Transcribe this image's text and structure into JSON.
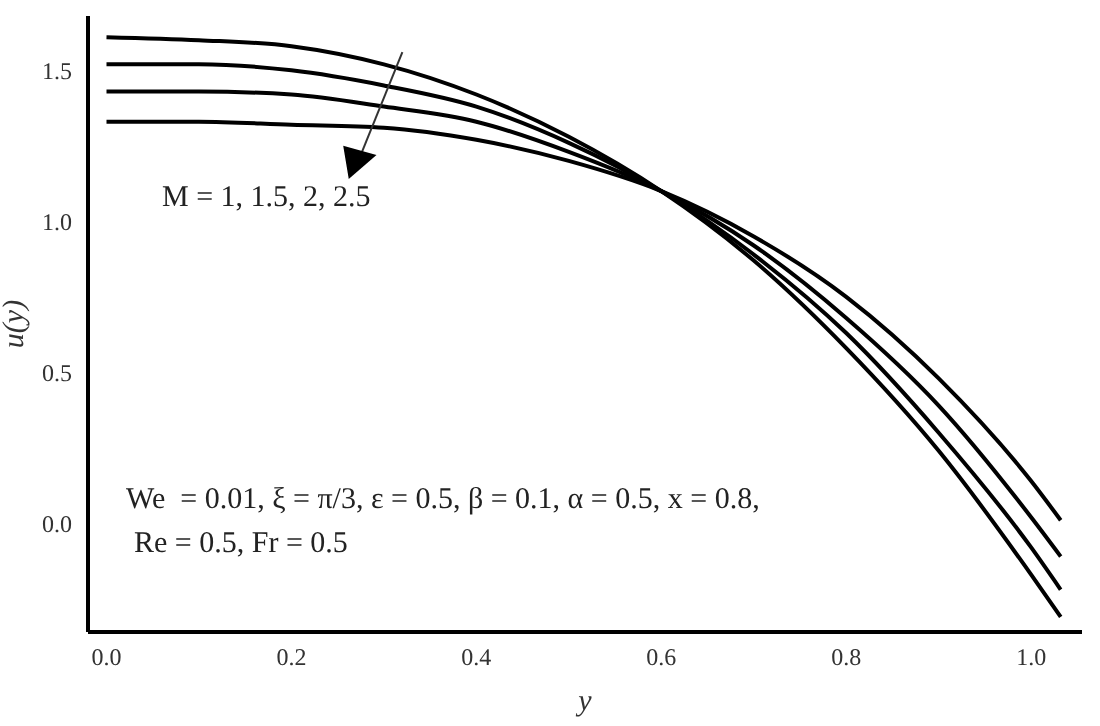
{
  "chart_data": {
    "type": "line",
    "xlabel": "y",
    "ylabel": "u(y)",
    "x": [
      0,
      0.1,
      0.2,
      0.3,
      0.4,
      0.5,
      0.6,
      0.7,
      0.8,
      0.9,
      1.0,
      1.032
    ],
    "series": [
      {
        "color": "#000000",
        "values": [
          1.61,
          1.6,
          1.58,
          1.52,
          1.42,
          1.28,
          1.1,
          0.87,
          0.58,
          0.24,
          -0.17,
          -0.31
        ]
      },
      {
        "color": "#000000",
        "values": [
          1.52,
          1.52,
          1.5,
          1.45,
          1.38,
          1.26,
          1.1,
          0.89,
          0.63,
          0.3,
          -0.08,
          -0.22
        ]
      },
      {
        "color": "#000000",
        "values": [
          1.43,
          1.43,
          1.42,
          1.38,
          1.33,
          1.23,
          1.1,
          0.92,
          0.68,
          0.39,
          0.02,
          -0.11
        ]
      },
      {
        "color": "#000000",
        "values": [
          1.33,
          1.33,
          1.32,
          1.31,
          1.27,
          1.2,
          1.1,
          0.95,
          0.75,
          0.48,
          0.14,
          0.01
        ]
      }
    ],
    "xlim": [
      -0.02,
      1.055
    ],
    "ylim": [
      -0.36,
      1.68
    ],
    "xticks": [
      {
        "value": 0,
        "label": "0.0"
      },
      {
        "value": 0.2,
        "label": "0.2"
      },
      {
        "value": 0.4,
        "label": "0.4"
      },
      {
        "value": 0.6,
        "label": "0.6"
      },
      {
        "value": 0.8,
        "label": "0.8"
      },
      {
        "value": 1.0,
        "label": "1.0"
      }
    ],
    "yticks": [
      {
        "value": 0,
        "label": "0.0"
      },
      {
        "value": 0.5,
        "label": "0.5"
      },
      {
        "value": 1.0,
        "label": "1.0"
      },
      {
        "value": 1.5,
        "label": "1.5"
      }
    ],
    "annotations": [
      "M = 1, 1.5, 2, 2.5",
      "We  = 0.01, ξ = π/3, ε = 0.5, β = 0.1, α = 0.5, x = 0.8,",
      "Re = 0.5, Fr = 0.5"
    ],
    "grid": false,
    "legend": false,
    "marker": "none",
    "line_style": "solid"
  }
}
